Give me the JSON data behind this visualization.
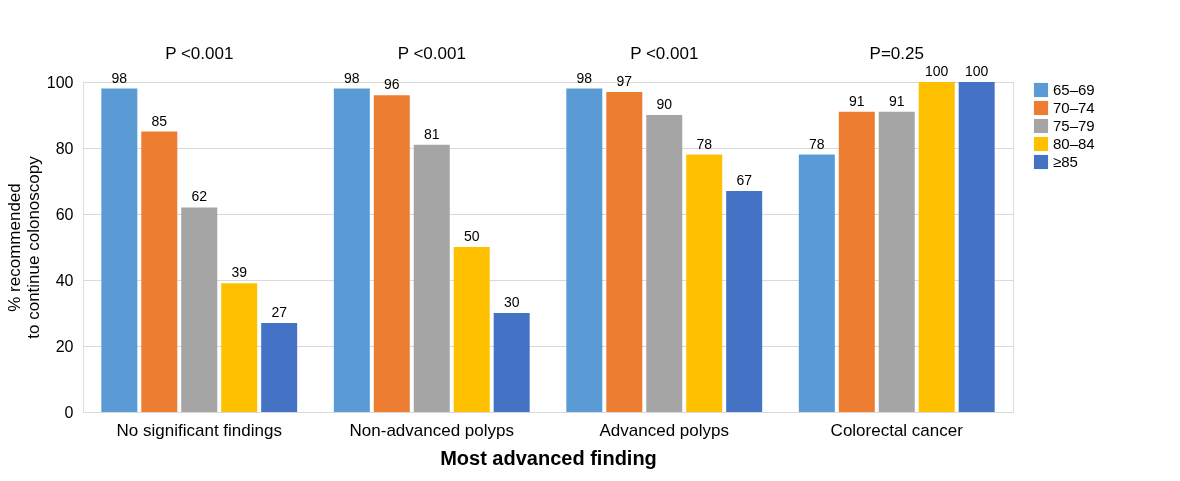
{
  "chart_data": {
    "type": "bar",
    "xlabel": "Most advanced finding",
    "ylabel": "% recommended\nto continue colonoscopy",
    "categories": [
      "No significant findings",
      "Non-advanced polyps",
      "Advanced polyps",
      "Colorectal cancer"
    ],
    "series": [
      {
        "name": "65–69",
        "color": "#5b9bd5",
        "values": [
          98,
          98,
          98,
          78
        ]
      },
      {
        "name": "70–74",
        "color": "#ed7d31",
        "values": [
          85,
          96,
          97,
          91
        ]
      },
      {
        "name": "75–79",
        "color": "#a5a5a5",
        "values": [
          62,
          81,
          90,
          91
        ]
      },
      {
        "name": "80–84",
        "color": "#ffc000",
        "values": [
          39,
          50,
          78,
          100
        ]
      },
      {
        "name": "≥85",
        "color": "#4472c4",
        "values": [
          27,
          30,
          67,
          100
        ]
      }
    ],
    "ylim": [
      0,
      100
    ],
    "yticks": [
      0,
      20,
      40,
      60,
      80,
      100
    ],
    "grid": "y",
    "legend": "right",
    "data_labels": true,
    "annotations": [
      "P <0.001",
      "P <0.001",
      "P <0.001",
      "P=0.25"
    ]
  }
}
